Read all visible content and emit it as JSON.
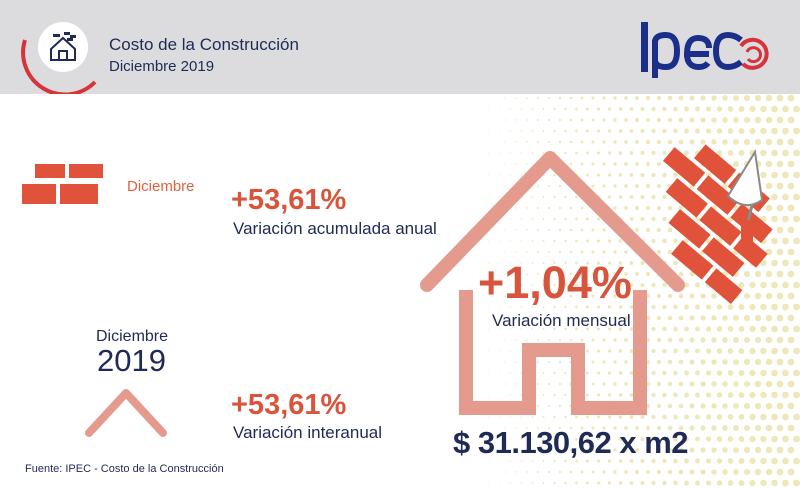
{
  "header": {
    "title": "Costo de la Construcción",
    "subtitle": "Diciembre 2019",
    "logo_text": "IPEC",
    "icon": "house-bricks-icon"
  },
  "colors": {
    "brick": "#e0533a",
    "house_outline": "#e59a8e",
    "navy": "#1f2a55",
    "accent_red": "#d8543a",
    "logo_blue": "#1a2e8a",
    "logo_red": "#d6333a"
  },
  "monthly_block": {
    "label": "Diciembre",
    "percent": "+53,61%",
    "description": "Variación acumulada anual",
    "icon": "bricks-icon"
  },
  "year_block": {
    "month": "Diciembre",
    "year": "2019",
    "percent": "+53,61%",
    "description": "Variación interanual",
    "icon": "roof-icon"
  },
  "main_block": {
    "percent": "+1,04%",
    "description": "Variación mensual",
    "price": "$ 31.130,62 x m2",
    "icon": "house-outline-icon"
  },
  "footer": {
    "source": "Fuente: IPEC - Costo de la Construcción"
  }
}
